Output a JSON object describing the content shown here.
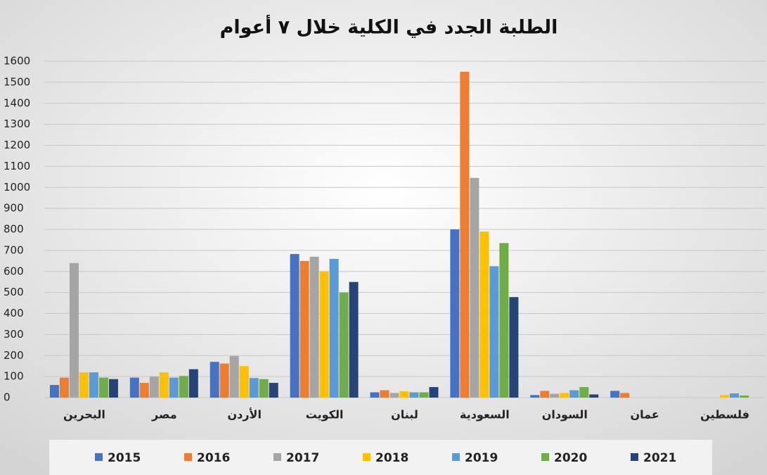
{
  "chart_data": {
    "type": "bar",
    "title": "الطلبة الجدد في الكلية خلال ٧ أعوام",
    "categories": [
      "البحرين",
      "مصر",
      "الأردن",
      "الكويت",
      "لبنان",
      "السعودية",
      "السودان",
      "عمان",
      "فلسطين"
    ],
    "series": [
      {
        "name": "2015",
        "color": "#4472c4",
        "values": [
          60,
          95,
          170,
          683,
          25,
          800,
          12,
          32,
          null
        ]
      },
      {
        "name": "2016",
        "color": "#ed7d31",
        "values": [
          95,
          70,
          162,
          650,
          35,
          1550,
          32,
          22,
          null
        ]
      },
      {
        "name": "2017",
        "color": "#a5a5a5",
        "values": [
          640,
          100,
          198,
          670,
          22,
          1045,
          18,
          null,
          null
        ]
      },
      {
        "name": "2018",
        "color": "#ffc000",
        "values": [
          120,
          120,
          150,
          600,
          30,
          790,
          22,
          null,
          12
        ]
      },
      {
        "name": "2019",
        "color": "#5b9bd5",
        "values": [
          120,
          95,
          93,
          660,
          25,
          625,
          35,
          null,
          20
        ]
      },
      {
        "name": "2020",
        "color": "#70ad47",
        "values": [
          95,
          103,
          88,
          500,
          25,
          735,
          50,
          null,
          10
        ]
      },
      {
        "name": "2021",
        "color": "#264478",
        "values": [
          88,
          135,
          70,
          550,
          50,
          478,
          15,
          null,
          null
        ]
      }
    ],
    "ylim": [
      0,
      1600
    ],
    "yticks": [
      0,
      100,
      200,
      300,
      400,
      500,
      600,
      700,
      800,
      900,
      1000,
      1100,
      1200,
      1300,
      1400,
      1500,
      1600
    ],
    "grid": true,
    "legend": "bottom"
  }
}
